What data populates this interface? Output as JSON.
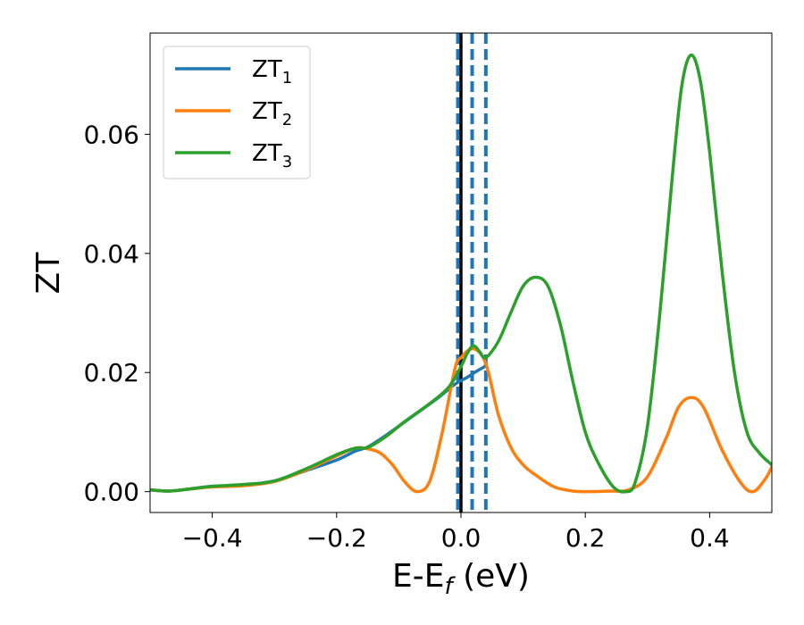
{
  "chart_data": {
    "type": "line",
    "xlabel": "E-E",
    "xlabel_sub": "f",
    "xlabel_unit": " (eV)",
    "ylabel": "ZT",
    "xlim": [
      -0.5,
      0.5
    ],
    "ylim": [
      -0.0035,
      0.077
    ],
    "xticks": [
      -0.4,
      -0.2,
      0.0,
      0.2,
      0.4
    ],
    "xtick_labels": [
      "−0.4",
      "−0.2",
      "0.0",
      "0.2",
      "0.4"
    ],
    "yticks": [
      0.0,
      0.02,
      0.04,
      0.06
    ],
    "ytick_labels": [
      "0.00",
      "0.02",
      "0.04",
      "0.06"
    ],
    "grid": false,
    "legend_position": "top-left",
    "vertical_lines": [
      {
        "x": 0.0,
        "style": "solid",
        "color": "#000000"
      },
      {
        "x": -0.005,
        "style": "dashed",
        "color": "#1f77b4"
      },
      {
        "x": 0.018,
        "style": "dashed",
        "color": "#1f77b4"
      },
      {
        "x": 0.04,
        "style": "dashed",
        "color": "#1f77b4"
      }
    ],
    "series": [
      {
        "name": "ZT",
        "name_sub": "1",
        "color": "#1f77b4",
        "points": [
          [
            -0.5,
            0.0003
          ],
          [
            -0.47,
            0.0001
          ],
          [
            -0.44,
            0.0004
          ],
          [
            -0.4,
            0.0009
          ],
          [
            -0.35,
            0.0011
          ],
          [
            -0.3,
            0.0018
          ],
          [
            -0.25,
            0.0035
          ],
          [
            -0.2,
            0.0053
          ],
          [
            -0.17,
            0.0068
          ],
          [
            -0.15,
            0.0075
          ],
          [
            -0.12,
            0.0095
          ],
          [
            -0.08,
            0.0125
          ],
          [
            -0.04,
            0.0155
          ],
          [
            -0.01,
            0.018
          ],
          [
            0.01,
            0.0192
          ],
          [
            0.025,
            0.0202
          ],
          [
            0.04,
            0.0211
          ]
        ]
      },
      {
        "name": "ZT",
        "name_sub": "2",
        "color": "#ff7f0e",
        "points": [
          [
            -0.5,
            0.0003
          ],
          [
            -0.47,
            0.0001
          ],
          [
            -0.44,
            0.0004
          ],
          [
            -0.4,
            0.0008
          ],
          [
            -0.35,
            0.001
          ],
          [
            -0.3,
            0.0017
          ],
          [
            -0.25,
            0.0036
          ],
          [
            -0.2,
            0.006
          ],
          [
            -0.17,
            0.0073
          ],
          [
            -0.15,
            0.0072
          ],
          [
            -0.13,
            0.0065
          ],
          [
            -0.11,
            0.0045
          ],
          [
            -0.09,
            0.0016
          ],
          [
            -0.07,
            0.0
          ],
          [
            -0.05,
            0.0018
          ],
          [
            -0.03,
            0.01
          ],
          [
            -0.01,
            0.0205
          ],
          [
            0.0,
            0.0225
          ],
          [
            0.02,
            0.024
          ],
          [
            0.04,
            0.0215
          ],
          [
            0.06,
            0.013
          ],
          [
            0.08,
            0.0075
          ],
          [
            0.1,
            0.0045
          ],
          [
            0.12,
            0.0028
          ],
          [
            0.15,
            0.0008
          ],
          [
            0.18,
            0.0001
          ],
          [
            0.2,
            0.0
          ],
          [
            0.24,
            0.0001
          ],
          [
            0.27,
            0.0003
          ],
          [
            0.3,
            0.0025
          ],
          [
            0.33,
            0.009
          ],
          [
            0.35,
            0.0142
          ],
          [
            0.37,
            0.0158
          ],
          [
            0.39,
            0.0142
          ],
          [
            0.42,
            0.007
          ],
          [
            0.45,
            0.0015
          ],
          [
            0.47,
            0.0
          ],
          [
            0.49,
            0.0022
          ],
          [
            0.5,
            0.0042
          ]
        ]
      },
      {
        "name": "ZT",
        "name_sub": "3",
        "color": "#2ca02c",
        "points": [
          [
            -0.5,
            0.0003
          ],
          [
            -0.47,
            0.0001
          ],
          [
            -0.44,
            0.0004
          ],
          [
            -0.4,
            0.0009
          ],
          [
            -0.35,
            0.0012
          ],
          [
            -0.3,
            0.0018
          ],
          [
            -0.25,
            0.0038
          ],
          [
            -0.2,
            0.0062
          ],
          [
            -0.17,
            0.0073
          ],
          [
            -0.15,
            0.0074
          ],
          [
            -0.12,
            0.0093
          ],
          [
            -0.09,
            0.0118
          ],
          [
            -0.05,
            0.0148
          ],
          [
            -0.02,
            0.0175
          ],
          [
            0.0,
            0.021
          ],
          [
            0.01,
            0.0232
          ],
          [
            0.02,
            0.0245
          ],
          [
            0.03,
            0.0235
          ],
          [
            0.04,
            0.0225
          ],
          [
            0.06,
            0.0252
          ],
          [
            0.08,
            0.03
          ],
          [
            0.1,
            0.0345
          ],
          [
            0.12,
            0.036
          ],
          [
            0.14,
            0.0345
          ],
          [
            0.16,
            0.028
          ],
          [
            0.18,
            0.0185
          ],
          [
            0.2,
            0.01
          ],
          [
            0.22,
            0.005
          ],
          [
            0.245,
            0.0008
          ],
          [
            0.265,
            0.0
          ],
          [
            0.28,
            0.0015
          ],
          [
            0.3,
            0.011
          ],
          [
            0.32,
            0.03
          ],
          [
            0.34,
            0.053
          ],
          [
            0.355,
            0.068
          ],
          [
            0.37,
            0.0733
          ],
          [
            0.385,
            0.069
          ],
          [
            0.4,
            0.057
          ],
          [
            0.42,
            0.037
          ],
          [
            0.44,
            0.02
          ],
          [
            0.46,
            0.01
          ],
          [
            0.48,
            0.0065
          ],
          [
            0.5,
            0.0045
          ]
        ]
      }
    ]
  }
}
